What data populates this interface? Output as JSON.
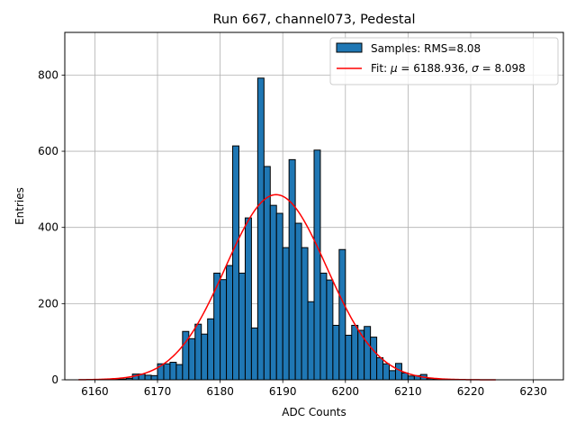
{
  "chart_data": {
    "type": "bar",
    "title": "Run 667, channel073, Pedestal",
    "xlabel": "ADC Counts",
    "ylabel": "Entries",
    "xlim": [
      6155.2,
      6234.8
    ],
    "ylim": [
      0,
      912
    ],
    "grid": true,
    "legend_position": "top-right",
    "x_ticks": [
      6160,
      6170,
      6180,
      6190,
      6200,
      6210,
      6220,
      6230
    ],
    "y_ticks": [
      0,
      200,
      400,
      600,
      800
    ],
    "series": [
      {
        "name": "Samples: RMS=8.08",
        "kind": "histogram",
        "bin_width": 1,
        "bin_starts": [
          6163,
          6164,
          6165,
          6166,
          6167,
          6168,
          6169,
          6170,
          6171,
          6172,
          6173,
          6174,
          6175,
          6176,
          6177,
          6178,
          6179,
          6180,
          6181,
          6182,
          6183,
          6184,
          6185,
          6186,
          6187,
          6188,
          6189,
          6190,
          6191,
          6192,
          6193,
          6194,
          6195,
          6196,
          6197,
          6198,
          6199,
          6200,
          6201,
          6202,
          6203,
          6204,
          6205,
          6206,
          6207,
          6208,
          6209,
          6210,
          6211,
          6212,
          6213,
          6214,
          6215,
          6216,
          6217
        ],
        "counts": [
          2,
          2,
          4,
          15,
          15,
          12,
          11,
          42,
          42,
          46,
          40,
          127,
          108,
          146,
          120,
          160,
          280,
          263,
          300,
          614,
          280,
          425,
          136,
          792,
          560,
          458,
          437,
          347,
          578,
          411,
          347,
          205,
          603,
          280,
          262,
          143,
          342,
          117,
          143,
          130,
          140,
          112,
          58,
          42,
          24,
          43,
          18,
          10,
          11,
          14,
          3,
          2,
          2,
          1,
          1
        ],
        "color": "#1f77b4",
        "edge_color": "#000000"
      },
      {
        "name": "Fit: μ = 6188.936, σ = 8.098",
        "kind": "gaussian-fit",
        "mu": 6188.936,
        "sigma": 8.098,
        "amplitude": 486,
        "x_range": [
          6157.4,
          6224
        ],
        "color": "#ff0000"
      }
    ]
  },
  "legend": {
    "label_samples": "Samples: RMS=8.08",
    "fit_prefix": "Fit: ",
    "fit_mu_symbol": "μ",
    "fit_mu_text": " = 6188.936, ",
    "fit_sigma_symbol": "σ",
    "fit_sigma_text": " = 8.098"
  }
}
